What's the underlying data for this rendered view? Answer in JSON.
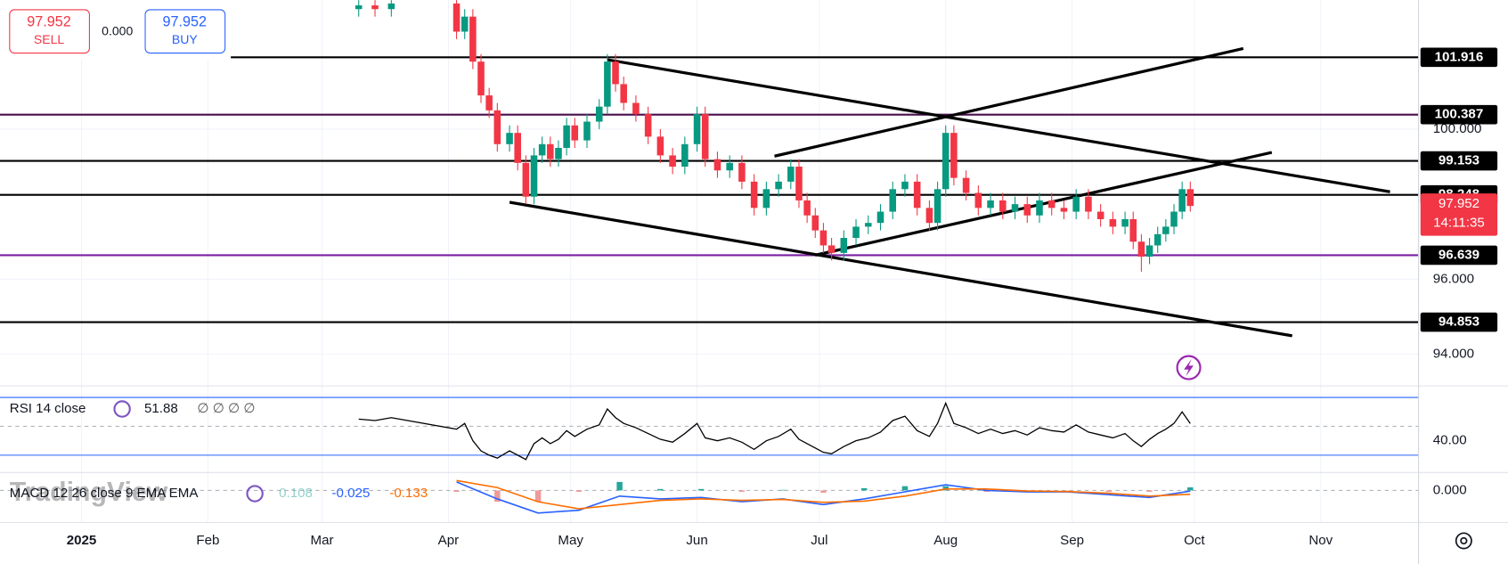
{
  "trade_panel": {
    "sell_price": "97.952",
    "sell_label": "SELL",
    "spread": "0.000",
    "buy_price": "97.952",
    "buy_label": "BUY"
  },
  "watermark": "TradingView",
  "chart_data": [
    {
      "type": "candlestick",
      "x": [
        68,
        72,
        76,
        92,
        94,
        96,
        98,
        100,
        102,
        105,
        107,
        109,
        111,
        113,
        115,
        117,
        119,
        121,
        124,
        127,
        129,
        131,
        133,
        136,
        139,
        142,
        145,
        148,
        151,
        153,
        156,
        159,
        162,
        165,
        168,
        171,
        174,
        176,
        178,
        180,
        182,
        184,
        187,
        190,
        193,
        196,
        199,
        202,
        205,
        208,
        210,
        212,
        214,
        217,
        220,
        223,
        226,
        229,
        232,
        235,
        238,
        241,
        244,
        247,
        250,
        253,
        256,
        258,
        260,
        262,
        264,
        266,
        268,
        270,
        272
      ],
      "open": [
        103.2,
        103.3,
        103.2,
        103.35,
        102.6,
        103.0,
        101.8,
        100.9,
        100.5,
        99.6,
        99.9,
        99.1,
        98.2,
        99.3,
        99.6,
        99.2,
        99.5,
        100.1,
        99.7,
        100.2,
        100.6,
        101.8,
        101.2,
        100.7,
        100.4,
        99.8,
        99.3,
        99.0,
        99.6,
        100.4,
        99.2,
        98.9,
        99.1,
        98.6,
        97.9,
        98.4,
        98.6,
        99.0,
        98.1,
        97.7,
        97.3,
        96.9,
        96.7,
        97.1,
        97.4,
        97.5,
        97.8,
        98.4,
        98.6,
        97.9,
        97.5,
        98.4,
        99.9,
        98.7,
        98.3,
        97.9,
        98.1,
        97.8,
        98.0,
        97.7,
        98.1,
        97.9,
        97.8,
        98.2,
        97.8,
        97.6,
        97.4,
        97.6,
        97.0,
        96.6,
        96.9,
        97.2,
        97.4,
        97.8,
        98.4
      ],
      "high": [
        103.5,
        103.5,
        103.55,
        103.55,
        103.2,
        103.2,
        102.0,
        101.1,
        100.7,
        100.1,
        100.1,
        99.3,
        99.5,
        99.8,
        99.8,
        99.7,
        100.3,
        100.3,
        100.4,
        100.8,
        102.0,
        102.0,
        101.4,
        100.9,
        100.6,
        100.0,
        99.5,
        99.8,
        100.6,
        100.6,
        99.4,
        99.3,
        99.3,
        98.8,
        98.6,
        98.8,
        99.2,
        99.2,
        98.3,
        97.9,
        97.5,
        97.1,
        97.3,
        97.6,
        97.7,
        98.0,
        98.6,
        98.8,
        98.8,
        98.1,
        98.6,
        100.1,
        100.1,
        98.9,
        98.5,
        98.3,
        98.3,
        98.2,
        98.2,
        98.3,
        98.3,
        98.1,
        98.4,
        98.4,
        98.0,
        97.8,
        97.8,
        97.8,
        97.2,
        97.1,
        97.4,
        97.6,
        98.0,
        98.6,
        98.6
      ],
      "low": [
        103.0,
        103.0,
        103.0,
        102.4,
        102.4,
        101.6,
        100.7,
        100.3,
        99.4,
        99.4,
        98.9,
        98.0,
        98.0,
        99.1,
        99.0,
        99.0,
        99.3,
        99.5,
        99.5,
        100.0,
        100.4,
        101.0,
        100.5,
        100.2,
        99.6,
        99.1,
        98.8,
        98.8,
        99.4,
        99.0,
        98.7,
        98.7,
        98.4,
        97.7,
        97.7,
        98.2,
        98.4,
        97.9,
        97.5,
        97.1,
        96.7,
        96.5,
        96.5,
        96.9,
        97.2,
        97.3,
        97.6,
        98.2,
        97.7,
        97.3,
        97.3,
        98.2,
        98.5,
        98.1,
        97.7,
        97.7,
        97.6,
        97.6,
        97.5,
        97.5,
        97.7,
        97.6,
        97.6,
        97.6,
        97.4,
        97.2,
        97.2,
        96.8,
        96.2,
        96.4,
        96.7,
        97.0,
        97.2,
        97.6,
        97.8
      ],
      "close": [
        103.3,
        103.2,
        103.35,
        102.6,
        103.0,
        101.8,
        100.9,
        100.5,
        99.6,
        99.9,
        99.1,
        98.2,
        99.3,
        99.6,
        99.2,
        99.5,
        100.1,
        99.7,
        100.2,
        100.6,
        101.8,
        101.2,
        100.7,
        100.4,
        99.8,
        99.3,
        99.0,
        99.6,
        100.4,
        99.2,
        98.9,
        99.1,
        98.6,
        97.9,
        98.4,
        98.6,
        99.0,
        98.1,
        97.7,
        97.3,
        96.9,
        96.7,
        97.1,
        97.4,
        97.5,
        97.8,
        98.4,
        98.6,
        97.9,
        97.5,
        98.4,
        99.9,
        98.7,
        98.3,
        97.9,
        98.1,
        97.8,
        98.0,
        97.7,
        98.1,
        97.9,
        97.8,
        98.2,
        97.8,
        97.6,
        97.4,
        97.6,
        97.0,
        96.6,
        96.9,
        97.2,
        97.4,
        97.8,
        98.4,
        97.952
      ],
      "up_color": "#089981",
      "down_color": "#f23645",
      "xlim": [
        -20,
        328
      ],
      "xticks": [
        {
          "value": 0,
          "label": "2025"
        },
        {
          "value": 31,
          "label": "Feb"
        },
        {
          "value": 59,
          "label": "Mar"
        },
        {
          "value": 90,
          "label": "Apr"
        },
        {
          "value": 120,
          "label": "May"
        },
        {
          "value": 151,
          "label": "Jun"
        },
        {
          "value": 181,
          "label": "Jul"
        },
        {
          "value": 212,
          "label": "Aug"
        },
        {
          "value": 243,
          "label": "Sep"
        },
        {
          "value": 273,
          "label": "Oct"
        },
        {
          "value": 304,
          "label": "Nov"
        }
      ],
      "ylim": [
        93.18,
        103.44
      ],
      "yticks": [
        {
          "value": 100,
          "label": "100.000"
        },
        {
          "value": 96,
          "label": "96.000"
        },
        {
          "value": 94,
          "label": "94.000"
        }
      ],
      "grid": true,
      "levels": [
        101.916,
        100.387,
        99.153,
        98.248,
        96.639,
        94.853
      ],
      "level_colors": [
        "#000000",
        "#4a0e4e",
        "#000000",
        "#000000",
        "#7b1fa2",
        "#000000"
      ],
      "trend_lines": [
        {
          "x": [
            129,
            321
          ],
          "y": [
            101.85,
            98.33
          ]
        },
        {
          "x": [
            105,
            297
          ],
          "y": [
            98.05,
            94.49
          ]
        },
        {
          "x": [
            180,
            292
          ],
          "y": [
            96.64,
            99.38
          ]
        },
        {
          "x": [
            170,
            285
          ],
          "y": [
            99.28,
            102.15
          ]
        }
      ],
      "countdown": "14:11:35"
    },
    {
      "type": "line",
      "title": "RSI 14 close",
      "extra": "∅ ∅ ∅ ∅",
      "color": "#000000",
      "x": [
        68,
        72,
        76,
        92,
        94,
        96,
        98,
        100,
        102,
        105,
        107,
        109,
        111,
        113,
        115,
        117,
        119,
        121,
        124,
        127,
        129,
        131,
        133,
        136,
        139,
        142,
        145,
        148,
        151,
        153,
        156,
        159,
        162,
        165,
        168,
        171,
        174,
        176,
        178,
        180,
        182,
        184,
        187,
        190,
        193,
        196,
        199,
        202,
        205,
        208,
        210,
        212,
        214,
        217,
        220,
        223,
        226,
        229,
        232,
        235,
        238,
        241,
        244,
        247,
        250,
        253,
        256,
        258,
        260,
        262,
        264,
        266,
        268,
        270,
        272
      ],
      "values": [
        55,
        54,
        56,
        48,
        52,
        40,
        33,
        30,
        28,
        33,
        30,
        27,
        38,
        42,
        38,
        41,
        47,
        43,
        48,
        51,
        62,
        56,
        52,
        49,
        45,
        41,
        39,
        45,
        52,
        42,
        40,
        42,
        39,
        34,
        40,
        43,
        48,
        41,
        38,
        35,
        32,
        31,
        36,
        40,
        42,
        46,
        54,
        57,
        47,
        43,
        52,
        66,
        52,
        49,
        45,
        48,
        45,
        47,
        44,
        49,
        47,
        46,
        51,
        46,
        44,
        42,
        45,
        40,
        36,
        41,
        45,
        48,
        52,
        60,
        51.88
      ],
      "ylim": [
        18.7,
        77.3
      ],
      "yticks": [
        {
          "value": 40,
          "label": "40.00"
        }
      ],
      "hlines": [
        70,
        50,
        30
      ],
      "hline_dash": [
        false,
        true,
        false
      ]
    },
    {
      "type": "macd",
      "title": "MACD 12 26 close 9 EMA EMA",
      "x": [
        92,
        102,
        112,
        122,
        132,
        142,
        152,
        162,
        172,
        182,
        192,
        202,
        212,
        222,
        232,
        242,
        252,
        262,
        272
      ],
      "histogram": [
        -0.05,
        -0.4,
        -0.4,
        -0.05,
        0.3,
        0.05,
        0.05,
        -0.05,
        0.02,
        -0.08,
        0.08,
        0.15,
        0.15,
        -0.05,
        -0.03,
        -0.01,
        -0.05,
        -0.05,
        0.108
      ],
      "macd": [
        0.3,
        -0.3,
        -0.8,
        -0.7,
        -0.2,
        -0.3,
        -0.25,
        -0.4,
        -0.3,
        -0.5,
        -0.3,
        -0.05,
        0.2,
        0.0,
        -0.05,
        -0.05,
        -0.15,
        -0.25,
        -0.025
      ],
      "signal": [
        0.35,
        0.1,
        -0.4,
        -0.65,
        -0.5,
        -0.35,
        -0.3,
        -0.35,
        -0.32,
        -0.42,
        -0.38,
        -0.2,
        0.05,
        0.05,
        -0.02,
        -0.04,
        -0.1,
        -0.2,
        -0.133
      ],
      "hist_up_color": "#26a69a",
      "hist_down_color": "#ef9a9a",
      "macd_color": "#2962ff",
      "signal_color": "#ff6d00",
      "ylim": [
        -1.1,
        0.6
      ],
      "yticks": [
        {
          "value": 0,
          "label": "0.000"
        }
      ]
    }
  ]
}
